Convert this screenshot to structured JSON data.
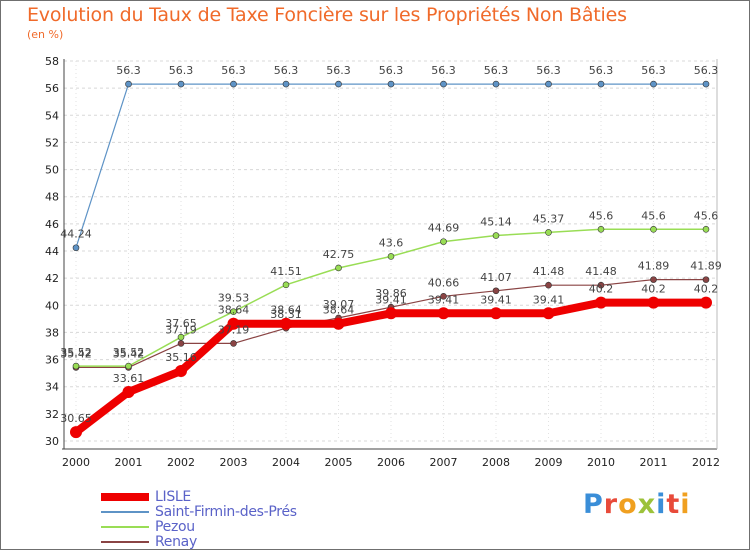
{
  "title": "Evolution du Taux de Taxe Foncière sur les Propriétés Non Bâties",
  "unit_label": "(en %)",
  "logo": {
    "text": "Proxiti",
    "letters": [
      {
        "ch": "P",
        "color": "#3a8ed8"
      },
      {
        "ch": "r",
        "color": "#e84a3a"
      },
      {
        "ch": "o",
        "color": "#f0a020"
      },
      {
        "ch": "x",
        "color": "#9cc23a"
      },
      {
        "ch": "i",
        "color": "#3a8ed8"
      },
      {
        "ch": "t",
        "color": "#e84a3a"
      },
      {
        "ch": "i",
        "color": "#f0a020"
      }
    ]
  },
  "chart_data": {
    "type": "line",
    "title": "Evolution du Taux de Taxe Foncière sur les Propriétés Non Bâties",
    "ylabel": "(en %)",
    "xlabel": "",
    "x": [
      "2000",
      "2001",
      "2002",
      "2003",
      "2004",
      "2005",
      "2006",
      "2007",
      "2008",
      "2009",
      "2010",
      "2011",
      "2012"
    ],
    "ylim": [
      30,
      58
    ],
    "yticks": [
      30,
      32,
      34,
      36,
      38,
      40,
      42,
      44,
      46,
      48,
      50,
      52,
      54,
      56,
      58
    ],
    "grid": "horizontal dashed",
    "legend_position": "bottom-left",
    "series": [
      {
        "name": "LISLE",
        "color": "#ee0000",
        "values": [
          30.65,
          33.61,
          35.16,
          38.64,
          38.64,
          38.64,
          39.41,
          39.41,
          39.41,
          39.41,
          40.2,
          40.2,
          40.2
        ],
        "labels": [
          "30.65",
          "33.61",
          "35.16",
          "38.64",
          "38.64",
          "38.64",
          "39.41",
          "39.41",
          "39.41",
          "39.41",
          "40.2",
          "40.2",
          "40.2"
        ]
      },
      {
        "name": "Saint-Firmin-des-Prés",
        "color": "#5e93c6",
        "values": [
          44.24,
          56.3,
          56.3,
          56.3,
          56.3,
          56.3,
          56.3,
          56.3,
          56.3,
          56.3,
          56.3,
          56.3,
          56.3
        ],
        "labels": [
          "44.24",
          "56.3",
          "56.3",
          "56.3",
          "56.3",
          "56.3",
          "56.3",
          "56.3",
          "56.3",
          "56.3",
          "56.3",
          "56.3",
          "56.3"
        ]
      },
      {
        "name": "Pezou",
        "color": "#99dd55",
        "values": [
          35.52,
          35.52,
          37.65,
          39.53,
          41.51,
          42.75,
          43.6,
          44.69,
          45.14,
          45.37,
          45.6,
          45.6,
          45.6
        ],
        "labels": [
          "35.52",
          "35.52",
          "37.65",
          "39.53",
          "41.51",
          "42.75",
          "43.6",
          "44.69",
          "45.14",
          "45.37",
          "45.6",
          "45.6",
          "45.6"
        ]
      },
      {
        "name": "Renay",
        "color": "#8a4444",
        "values": [
          35.42,
          35.42,
          37.19,
          37.19,
          38.31,
          39.07,
          39.86,
          40.66,
          41.07,
          41.48,
          41.48,
          41.89,
          41.89
        ],
        "labels": [
          "35.42",
          "35.42",
          "37.19",
          "37.19",
          "38.31",
          "39.07",
          "39.86",
          "40.66",
          "41.07",
          "41.48",
          "41.48",
          "41.89",
          "41.89"
        ]
      }
    ]
  }
}
